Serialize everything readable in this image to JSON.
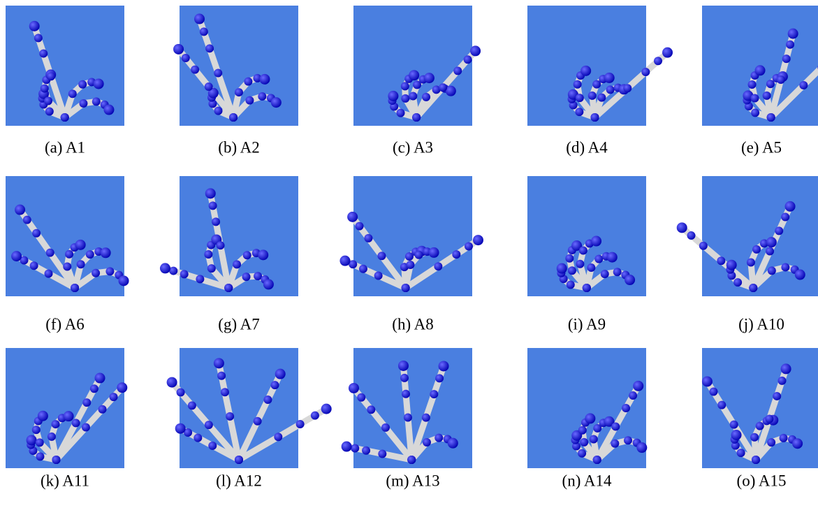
{
  "figures": [
    {
      "caption": "(a) A1"
    },
    {
      "caption": "(b) A2"
    },
    {
      "caption": "(c) A3"
    },
    {
      "caption": "(d) A4"
    },
    {
      "caption": "(e) A5"
    },
    {
      "caption": "(f) A6"
    },
    {
      "caption": "(g) A7"
    },
    {
      "caption": "(h) A8"
    },
    {
      "caption": "(i) A9"
    },
    {
      "caption": "(j) A10"
    },
    {
      "caption": "(k) A11"
    },
    {
      "caption": "(l) A12"
    },
    {
      "caption": "(m) A13"
    },
    {
      "caption": "(n) A14"
    },
    {
      "caption": "(o) A15"
    }
  ]
}
